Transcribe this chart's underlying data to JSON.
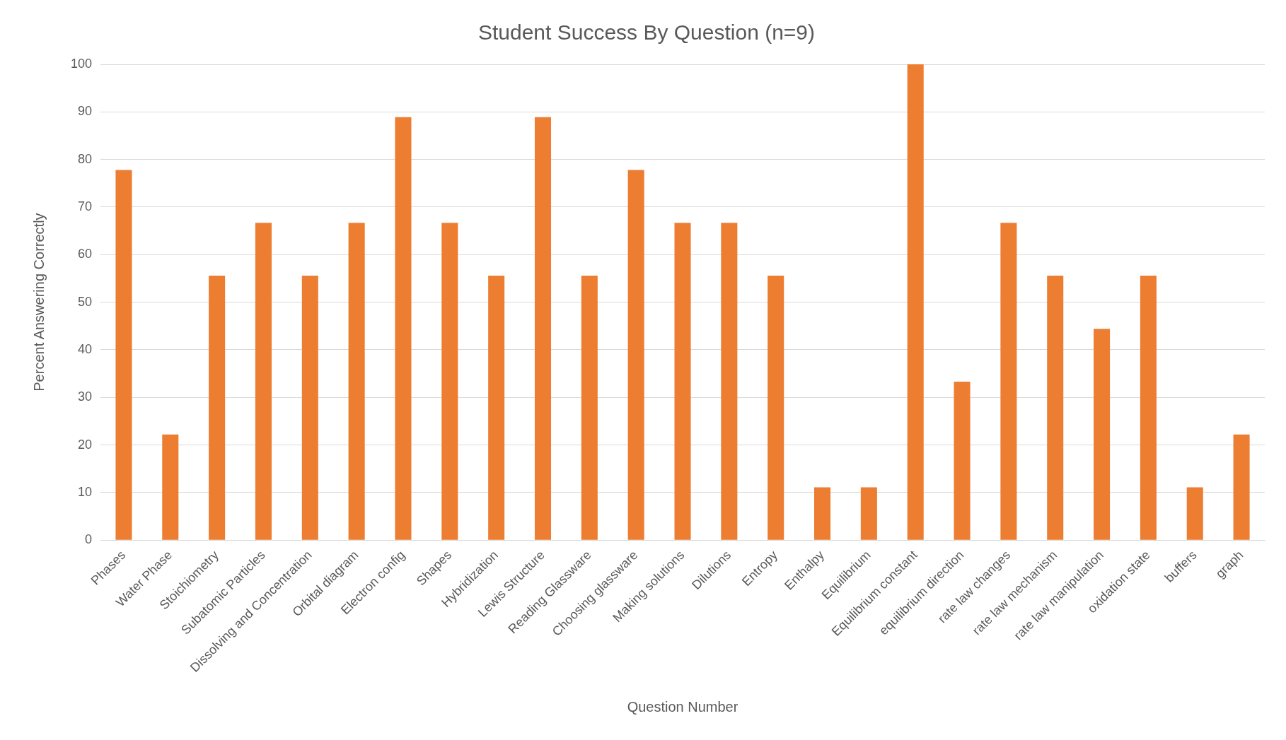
{
  "chart_data": {
    "type": "bar",
    "title": "Student Success By Question (n=9)",
    "xlabel": "Question Number",
    "ylabel": "Percent Answering Correctly",
    "categories": [
      "Phases",
      "Water Phase",
      "Stoichiometry",
      "Subatomic Particles",
      "Dissolving and Concentration",
      "Orbital diagram",
      "Electron config",
      "Shapes",
      "Hybridization",
      "Lewis Structure",
      "Reading Glassware",
      "Choosing glassware",
      "Making solutions",
      "Dilutions",
      "Entropy",
      "Enthalpy",
      "Equilibrium",
      "Equilibrium constant",
      "equilibrium direction",
      "rate law changes",
      "rate law mechanism",
      "rate law manipulation",
      "oxidation state",
      "buffers",
      "graph"
    ],
    "values": [
      77.8,
      22.2,
      55.6,
      66.7,
      55.6,
      66.7,
      88.9,
      66.7,
      55.6,
      88.9,
      55.6,
      77.8,
      66.7,
      66.7,
      55.6,
      11.1,
      11.1,
      100,
      33.3,
      66.7,
      55.6,
      44.4,
      55.6,
      11.1,
      22.2
    ],
    "color": "#ed7d31",
    "ylim": [
      0,
      100
    ],
    "yticks": [
      0,
      10,
      20,
      30,
      40,
      50,
      60,
      70,
      80,
      90,
      100
    ],
    "grid": "y"
  }
}
